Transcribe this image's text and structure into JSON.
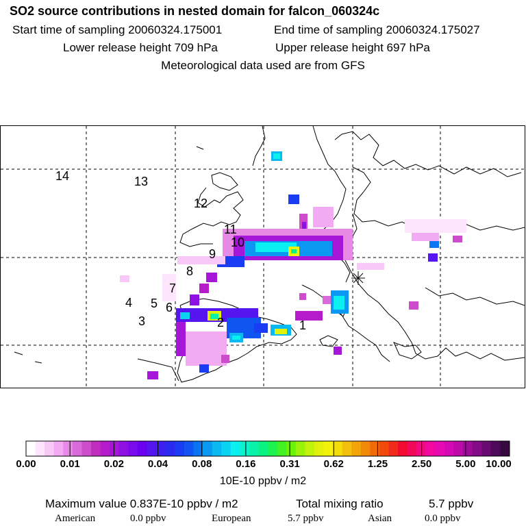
{
  "header": {
    "title": "SO2 source contributions in nested domain for falcon_060324c",
    "start": "Start time of sampling 20060324.175001",
    "end": "End time of sampling 20060324.175027",
    "lower": "Lower release height  709 hPa",
    "upper": "Upper release height  697 hPa",
    "met": "Meteorological data used are from GFS"
  },
  "map": {
    "track_labels": [
      "14",
      "13",
      "12",
      "11",
      "10",
      "9",
      "8",
      "7",
      "6",
      "5",
      "4",
      "3",
      "2",
      "1"
    ],
    "marker_icon": "asterisk-marker-icon"
  },
  "legend": {
    "tick_labels": [
      "0.00",
      "0.01",
      "0.02",
      "0.04",
      "0.08",
      "0.16",
      "0.31",
      "0.62",
      "1.25",
      "2.50",
      "5.00",
      "10.00"
    ],
    "unit": "10E-10 ppbv / m2",
    "colors": [
      "#ffffff",
      "#fde6fd",
      "#f8c9f8",
      "#f2aaf2",
      "#e68ae6",
      "#d96ad9",
      "#cc4ccc",
      "#bf2ebf",
      "#b61bc9",
      "#a616d6",
      "#8f10e3",
      "#7a0aeb",
      "#6a00f0",
      "#5515ef",
      "#3e1ff0",
      "#2a2af2",
      "#1a3cf2",
      "#1055f2",
      "#0a75f2",
      "#0a98f2",
      "#0ab8f2",
      "#0ad3f2",
      "#0af0f0",
      "#0af2cf",
      "#0af2a8",
      "#0af280",
      "#1ef250",
      "#40f220",
      "#6af20a",
      "#98f20a",
      "#c0f20a",
      "#e0f20a",
      "#f2f20a",
      "#f2dc0a",
      "#f2c00a",
      "#f2a40a",
      "#f2880a",
      "#f26a0a",
      "#f24a0a",
      "#f22a1a",
      "#f20a30",
      "#f20a5a",
      "#f20a80",
      "#f20aa0",
      "#e60ab4",
      "#d20ab4",
      "#bc0aa8",
      "#a00a98",
      "#840a88",
      "#680a70",
      "#4e0a58",
      "#360a40"
    ]
  },
  "stats": {
    "max_label": "Maximum value  0.837E-10 ppbv / m2",
    "total_label": "Total mixing ratio",
    "total_value": "5.7 ppbv",
    "american_label": "American",
    "american_value": "0.0 ppbv",
    "european_label": "European",
    "european_value": "5.7 ppbv",
    "asian_label": "Asian",
    "asian_value": "0.0 ppbv"
  }
}
